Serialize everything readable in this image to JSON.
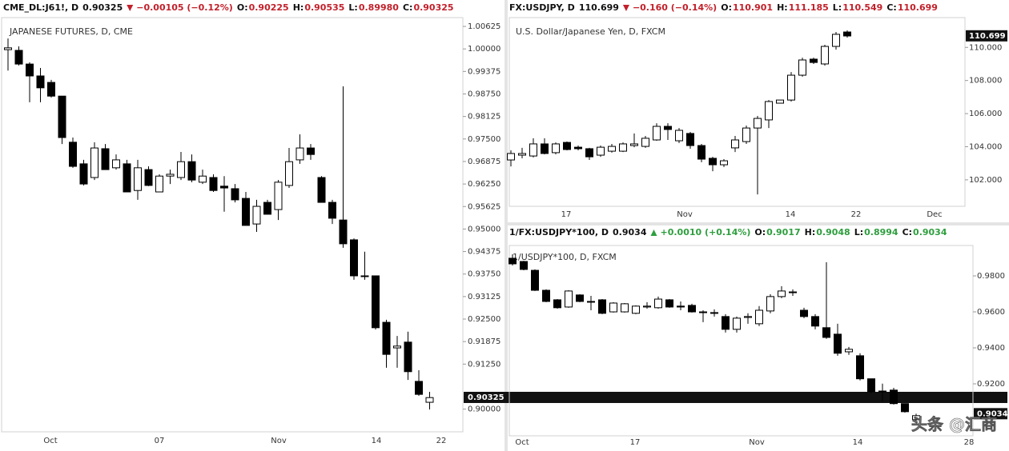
{
  "chart_data": [
    {
      "type": "candlestick",
      "title": "JAPANESE FUTURES, D, CME",
      "header": {
        "symbol": "CME_DL:J61!, D",
        "last": "0.90325",
        "direction": "down",
        "change": "−0.00105 (−0.12%)",
        "color": "#c2202a",
        "ohlc": [
          {
            "label": "O:",
            "value": "0.90225"
          },
          {
            "label": "H:",
            "value": "0.90535"
          },
          {
            "label": "L:",
            "value": "0.89980"
          },
          {
            "label": "C:",
            "value": "0.90325"
          }
        ]
      },
      "x_labels": [
        "Oct",
        "07",
        "Nov",
        "14",
        "22"
      ],
      "open": [
        0.9998,
        0.9996,
        0.9958,
        0.9925,
        0.9907,
        0.9869,
        0.9741,
        0.9681,
        0.9643,
        0.9723,
        0.967,
        0.9681,
        0.9607,
        0.9665,
        0.9603,
        0.9647,
        0.9643,
        0.9687,
        0.963,
        0.9643,
        0.9619,
        0.9612,
        0.9585,
        0.9514,
        0.9574,
        0.9554,
        0.9621,
        0.9692,
        0.9725,
        0.9643,
        0.9574,
        0.9525,
        0.947,
        0.937,
        0.937,
        0.9241,
        0.917,
        0.9186,
        0.9077,
        0.9019
      ],
      "high": [
        1.0029,
        1.0007,
        0.9963,
        0.9947,
        0.9914,
        0.9869,
        0.9754,
        0.9692,
        0.9741,
        0.9736,
        0.9707,
        0.9692,
        0.9692,
        0.9674,
        0.9652,
        0.9665,
        0.9714,
        0.9707,
        0.9665,
        0.9652,
        0.9647,
        0.9625,
        0.9603,
        0.9581,
        0.9581,
        0.9636,
        0.9725,
        0.9763,
        0.9736,
        0.9647,
        0.9581,
        0.9896,
        0.9474,
        0.9437,
        0.937,
        0.9248,
        0.9203,
        0.9215,
        0.9108,
        0.9048
      ],
      "low": [
        0.994,
        0.9954,
        0.9852,
        0.9852,
        0.9865,
        0.9736,
        0.967,
        0.9621,
        0.9636,
        0.9665,
        0.9665,
        0.9603,
        0.9581,
        0.9619,
        0.9603,
        0.9625,
        0.9636,
        0.963,
        0.9625,
        0.9603,
        0.9548,
        0.9574,
        0.951,
        0.9492,
        0.9541,
        0.9525,
        0.9614,
        0.9681,
        0.9692,
        0.9574,
        0.9514,
        0.9448,
        0.9359,
        0.9359,
        0.9221,
        0.9115,
        0.9115,
        0.9081,
        0.9037,
        0.8999
      ],
      "close": [
        1.0003,
        0.9958,
        0.9925,
        0.9892,
        0.9869,
        0.9754,
        0.9674,
        0.9625,
        0.9725,
        0.9665,
        0.9692,
        0.9603,
        0.967,
        0.9621,
        0.9647,
        0.9652,
        0.9687,
        0.9636,
        0.9647,
        0.9607,
        0.9614,
        0.9581,
        0.951,
        0.9563,
        0.9541,
        0.963,
        0.9687,
        0.9725,
        0.9707,
        0.9574,
        0.953,
        0.9459,
        0.937,
        0.9368,
        0.9226,
        0.9152,
        0.9175,
        0.9104,
        0.9041,
        0.9032
      ],
      "up_color": "#ffffff",
      "down_color": "#000000",
      "ylim": [
        0.8937,
        1.0087
      ],
      "yticks": [
        1.00625,
        {
          "value": 1,
          "label": "1.00000"
        },
        0.99375,
        {
          "value": 0.9875,
          "label": "0.98750"
        },
        0.98125,
        {
          "value": 0.975,
          "label": "0.97500"
        },
        0.96875,
        {
          "value": 0.9625,
          "label": "0.96250"
        },
        0.95625,
        {
          "value": 0.95,
          "label": "0.95000"
        },
        0.94375,
        {
          "value": 0.9375,
          "label": "0.93750"
        },
        0.93125,
        {
          "value": 0.925,
          "label": "0.92500"
        },
        0.91875,
        {
          "value": 0.9125,
          "label": "0.91250"
        },
        {
          "value": 0.9,
          "label": "0.90000"
        }
      ],
      "last_price": 0.90325
    },
    {
      "type": "candlestick",
      "title": "U.S. Dollar/Japanese Yen, D, FXCM",
      "header": {
        "symbol": "FX:USDJPY, D",
        "last": "110.699",
        "direction": "down",
        "change": "−0.160 (−0.14%)",
        "color": "#c2202a",
        "ohlc": [
          {
            "label": "O:",
            "value": "110.901"
          },
          {
            "label": "H:",
            "value": "111.185"
          },
          {
            "label": "L:",
            "value": "110.549"
          },
          {
            "label": "C:",
            "value": "110.699"
          }
        ]
      },
      "x_labels": [
        "17",
        "Nov",
        "14",
        "22",
        "Dec"
      ],
      "open": [
        103.2,
        103.49,
        103.44,
        104.17,
        103.64,
        104.26,
        103.97,
        103.88,
        103.49,
        103.73,
        103.73,
        104.07,
        104.02,
        104.41,
        105.23,
        104.36,
        104.8,
        104.07,
        103.3,
        102.91,
        103.93,
        104.31,
        105.13,
        105.62,
        106.63,
        106.82,
        108.32,
        109.29,
        109.0,
        110.06,
        110.93
      ],
      "high": [
        103.78,
        103.93,
        104.51,
        104.51,
        104.26,
        104.31,
        104.07,
        103.93,
        104.07,
        104.17,
        104.26,
        104.8,
        104.65,
        105.42,
        105.42,
        105.13,
        104.89,
        104.17,
        103.39,
        103.25,
        104.65,
        105.28,
        105.86,
        106.82,
        106.82,
        108.51,
        109.38,
        109.38,
        110.16,
        110.93,
        111.03
      ],
      "low": [
        102.81,
        103.3,
        103.35,
        103.54,
        103.54,
        103.78,
        103.78,
        103.2,
        103.39,
        103.64,
        103.68,
        103.97,
        103.93,
        104.36,
        104.41,
        104.22,
        103.88,
        103.06,
        102.52,
        102.77,
        103.68,
        104.17,
        101.12,
        105.13,
        106.63,
        106.73,
        108.23,
        109.0,
        108.9,
        109.87,
        110.59
      ],
      "close": [
        103.59,
        103.59,
        104.17,
        103.59,
        104.17,
        103.83,
        103.88,
        103.39,
        103.97,
        104.02,
        104.17,
        104.17,
        104.51,
        105.23,
        105.04,
        104.99,
        104.07,
        103.25,
        102.91,
        103.15,
        104.41,
        105.13,
        105.71,
        106.73,
        106.82,
        108.32,
        109.24,
        109.09,
        110.06,
        110.79,
        110.69
      ],
      "up_color": "#ffffff",
      "down_color": "#000000",
      "ylim": [
        100.4,
        111.8
      ],
      "yticks": [
        {
          "value": 110,
          "label": "110.000"
        },
        {
          "value": 108,
          "label": "108.000"
        },
        {
          "value": 106,
          "label": "106.000"
        },
        {
          "value": 104,
          "label": "104.000"
        },
        {
          "value": 102,
          "label": "102.000"
        }
      ],
      "last_price": 110.699
    },
    {
      "type": "candlestick",
      "title": "1/USDJPY*100, D, FXCM",
      "header": {
        "symbol": "1/FX:USDJPY*100, D",
        "last": "0.9034",
        "direction": "up",
        "change": "+0.0010 (+0.14%)",
        "color": "#2e9e3e",
        "ohlc": [
          {
            "label": "O:",
            "value": "0.9017"
          },
          {
            "label": "H:",
            "value": "0.9048"
          },
          {
            "label": "L:",
            "value": "0.8994"
          },
          {
            "label": "C:",
            "value": "0.9034"
          }
        ]
      },
      "x_labels": [
        "Oct",
        "17",
        "Nov",
        "14",
        "28"
      ],
      "open": [
        0.9898,
        0.988,
        0.9831,
        0.972,
        0.9667,
        0.9627,
        0.9694,
        0.9658,
        0.9667,
        0.96,
        0.96,
        0.9592,
        0.9627,
        0.9623,
        0.9667,
        0.9632,
        0.9636,
        0.96,
        0.9596,
        0.9574,
        0.9503,
        0.9569,
        0.9534,
        0.9605,
        0.9685,
        0.9711,
        0.9609,
        0.9574,
        0.9512,
        0.9476,
        0.9378,
        0.9356,
        0.9228,
        0.9156,
        0.9165,
        0.909,
        0.9001
      ],
      "high": [
        0.992,
        0.9884,
        0.9836,
        0.9725,
        0.9671,
        0.972,
        0.9698,
        0.9689,
        0.9671,
        0.9654,
        0.9649,
        0.9636,
        0.9654,
        0.9685,
        0.9671,
        0.9658,
        0.9645,
        0.9609,
        0.9614,
        0.9587,
        0.9574,
        0.9592,
        0.9632,
        0.9698,
        0.9743,
        0.9725,
        0.9623,
        0.9587,
        0.9876,
        0.9534,
        0.9405,
        0.937,
        0.9228,
        0.9201,
        0.9178,
        0.909,
        0.9034
      ],
      "low": [
        0.9858,
        0.9831,
        0.9716,
        0.9654,
        0.9618,
        0.9623,
        0.9654,
        0.9609,
        0.9587,
        0.9596,
        0.9596,
        0.9587,
        0.9618,
        0.9618,
        0.9623,
        0.9609,
        0.9596,
        0.9543,
        0.9574,
        0.9485,
        0.9485,
        0.9534,
        0.9521,
        0.9592,
        0.9676,
        0.9689,
        0.9565,
        0.9503,
        0.945,
        0.9356,
        0.9361,
        0.9219,
        0.9147,
        0.9103,
        0.9085,
        0.904,
        0.8994
      ],
      "close": [
        0.9867,
        0.9836,
        0.972,
        0.9658,
        0.9623,
        0.9716,
        0.9658,
        0.9654,
        0.9592,
        0.9649,
        0.9645,
        0.9632,
        0.9632,
        0.9671,
        0.9627,
        0.9627,
        0.96,
        0.9596,
        0.9592,
        0.9503,
        0.9565,
        0.9574,
        0.9609,
        0.9685,
        0.9716,
        0.9707,
        0.9574,
        0.9521,
        0.9458,
        0.937,
        0.9392,
        0.9228,
        0.9156,
        0.916,
        0.909,
        0.9045,
        0.9023
      ],
      "up_color": "#ffffff",
      "down_color": "#000000",
      "ylim": [
        0.8911,
        0.9969
      ],
      "yticks": [
        {
          "value": 0.98,
          "label": "0.9800"
        },
        {
          "value": 0.96,
          "label": "0.9600"
        },
        {
          "value": 0.94,
          "label": "0.9400"
        },
        {
          "value": 0.92,
          "label": "0.9200"
        }
      ],
      "last_price": 0.9034
    }
  ],
  "watermark": "头条 @汇商"
}
